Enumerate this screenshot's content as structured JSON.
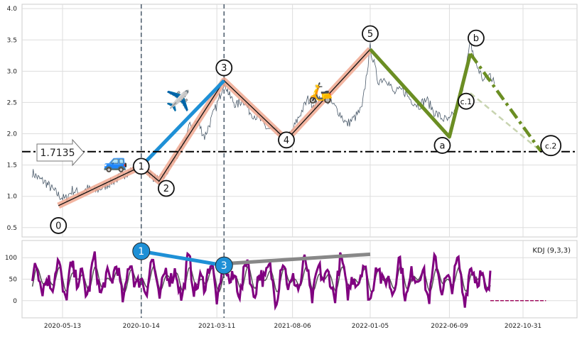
{
  "chart_data": [
    {
      "type": "line",
      "panel": "price",
      "title": "",
      "xlabel": "",
      "ylabel": "",
      "ylim": [
        0.35,
        4.07
      ],
      "yticks": [
        "0.5",
        "1.0",
        "1.5",
        "2.0",
        "2.5",
        "3.0",
        "3.5",
        "4.0"
      ],
      "grid": true,
      "price_series_color": "#4a5a6a",
      "series": [
        {
          "name": "",
          "points": [
            [
              "2020-03-15",
              1.38
            ],
            [
              "2020-03-28",
              1.28
            ],
            [
              "2020-04-10",
              1.22
            ],
            [
              "2020-04-22",
              1.12
            ],
            [
              "2020-05-05",
              1.02
            ],
            [
              "2020-05-18",
              0.95
            ],
            [
              "2020-06-01",
              1.1
            ],
            [
              "2020-06-15",
              1.05
            ],
            [
              "2020-07-01",
              1.12
            ],
            [
              "2020-07-15",
              1.08
            ],
            [
              "2020-08-01",
              1.15
            ],
            [
              "2020-08-15",
              1.22
            ],
            [
              "2020-09-01",
              1.3
            ],
            [
              "2020-09-15",
              1.38
            ],
            [
              "2020-10-01",
              1.45
            ],
            [
              "2020-10-14",
              1.5
            ],
            [
              "2020-10-25",
              1.42
            ],
            [
              "2020-11-05",
              1.32
            ],
            [
              "2020-11-18",
              1.25
            ],
            [
              "2020-12-01",
              1.35
            ],
            [
              "2020-12-15",
              1.55
            ],
            [
              "2021-01-01",
              1.75
            ],
            [
              "2021-01-15",
              2.1
            ],
            [
              "2021-02-01",
              2.2
            ],
            [
              "2021-02-15",
              1.95
            ],
            [
              "2021-03-01",
              2.25
            ],
            [
              "2021-03-15",
              2.55
            ],
            [
              "2021-03-25",
              2.85
            ],
            [
              "2021-04-05",
              2.6
            ],
            [
              "2021-04-18",
              2.45
            ],
            [
              "2021-05-01",
              2.55
            ],
            [
              "2021-05-15",
              2.35
            ],
            [
              "2021-06-01",
              2.25
            ],
            [
              "2021-06-15",
              2.1
            ],
            [
              "2021-07-01",
              2.05
            ],
            [
              "2021-07-15",
              1.95
            ],
            [
              "2021-07-25",
              1.88
            ],
            [
              "2021-08-06",
              2.05
            ],
            [
              "2021-08-20",
              2.3
            ],
            [
              "2021-09-05",
              2.55
            ],
            [
              "2021-09-20",
              2.45
            ],
            [
              "2021-10-05",
              2.6
            ],
            [
              "2021-10-20",
              2.5
            ],
            [
              "2021-11-05",
              2.35
            ],
            [
              "2021-11-20",
              2.15
            ],
            [
              "2021-12-05",
              2.25
            ],
            [
              "2021-12-20",
              2.4
            ],
            [
              "2022-01-05",
              3.38
            ],
            [
              "2022-01-20",
              2.85
            ],
            [
              "2022-02-05",
              2.9
            ],
            [
              "2022-02-20",
              2.65
            ],
            [
              "2022-03-10",
              2.7
            ],
            [
              "2022-03-25",
              2.55
            ],
            [
              "2022-04-10",
              2.45
            ],
            [
              "2022-04-25",
              2.55
            ],
            [
              "2022-05-10",
              2.35
            ],
            [
              "2022-05-25",
              2.25
            ],
            [
              "2022-06-09",
              2.2
            ],
            [
              "2022-06-22",
              2.4
            ],
            [
              "2022-07-05",
              2.75
            ],
            [
              "2022-07-20",
              3.45
            ],
            [
              "2022-08-01",
              3.1
            ],
            [
              "2022-08-15",
              2.85
            ],
            [
              "2022-08-28",
              2.95
            ],
            [
              "2022-09-05",
              2.8
            ]
          ]
        }
      ],
      "horizontal_line": {
        "value": 1.7135,
        "label": "1.7135"
      },
      "vertical_lines": [
        "2020-10-14",
        "2021-03-25"
      ],
      "wave_labels": [
        {
          "label": "0",
          "date": "2020-05-05",
          "value": 0.85
        },
        {
          "label": "1",
          "date": "2020-10-14",
          "value": 1.48
        },
        {
          "label": "2",
          "date": "2020-11-18",
          "value": 1.24
        },
        {
          "label": "3",
          "date": "2021-03-25",
          "value": 2.85
        },
        {
          "label": "4",
          "date": "2021-07-25",
          "value": 1.9
        },
        {
          "label": "5",
          "date": "2022-01-05",
          "value": 3.35
        },
        {
          "label": "a",
          "date": "2022-06-09",
          "value": 1.95
        },
        {
          "label": "b",
          "date": "2022-07-20",
          "value": 3.28
        },
        {
          "label": "c.1",
          "date": "2022-07-20",
          "value": 2.52
        },
        {
          "label": "c.2",
          "date": "2022-12-05",
          "value": 1.72
        }
      ],
      "wave_line_color": "#f0a890",
      "impulse_line_color": "#111111",
      "correction_color": "#6b8e23",
      "correction_dash_color": "#c8d4b0",
      "trend_color": "#1e90d6",
      "trend_line": {
        "from": [
          "2020-10-14",
          1.48
        ],
        "to": [
          "2021-03-25",
          2.85
        ]
      },
      "impulse_path": [
        [
          "2020-05-05",
          0.85
        ],
        [
          "2020-10-14",
          1.48
        ],
        [
          "2020-11-18",
          1.24
        ],
        [
          "2021-03-25",
          2.85
        ],
        [
          "2021-07-25",
          1.9
        ],
        [
          "2022-01-05",
          3.35
        ]
      ],
      "correction_path": [
        [
          "2022-01-05",
          3.35
        ],
        [
          "2022-06-09",
          1.95
        ],
        [
          "2022-07-20",
          3.28
        ]
      ],
      "projection_path": [
        [
          "2022-07-20",
          3.28
        ],
        [
          "2022-12-05",
          1.72
        ]
      ],
      "projection_alt_path": [
        [
          "2022-07-20",
          2.65
        ],
        [
          "2022-12-05",
          1.72
        ]
      ],
      "icons": [
        {
          "name": "car-icon",
          "glyph": "🚙",
          "date": "2020-08-25",
          "value": 1.45
        },
        {
          "name": "airplane-icon",
          "glyph": "✈️",
          "date": "2020-12-25",
          "value": 2.42
        },
        {
          "name": "scooter-icon",
          "glyph": "🛵",
          "date": "2021-09-30",
          "value": 2.55
        }
      ]
    },
    {
      "type": "line",
      "panel": "indicator",
      "legend": "KDJ (9,3,3)",
      "legend_position": "top-right",
      "ylim": [
        -40,
        140
      ],
      "yticks": [
        "0",
        "50",
        "100"
      ],
      "grid": true,
      "series_color": "#800080",
      "secondary_color": "#555555",
      "divergence_lines": [
        {
          "from": [
            "2020-10-14",
            115
          ],
          "to": [
            "2021-03-25",
            82
          ],
          "color": "#1e90d6",
          "labels": [
            "1",
            "3"
          ]
        },
        {
          "from": [
            "2021-03-25",
            86
          ],
          "to": [
            "2022-01-05",
            108
          ],
          "color": "#888888"
        }
      ],
      "flat_line": {
        "from": "2022-08-28",
        "to": "2022-12-15",
        "value": 0,
        "color": "#a01060"
      }
    }
  ],
  "x_ticks": [
    "2020-05-13",
    "2020-10-14",
    "2021-03-11",
    "2021-08-06",
    "2022-01-05",
    "2022-06-09",
    "2022-10-31"
  ]
}
